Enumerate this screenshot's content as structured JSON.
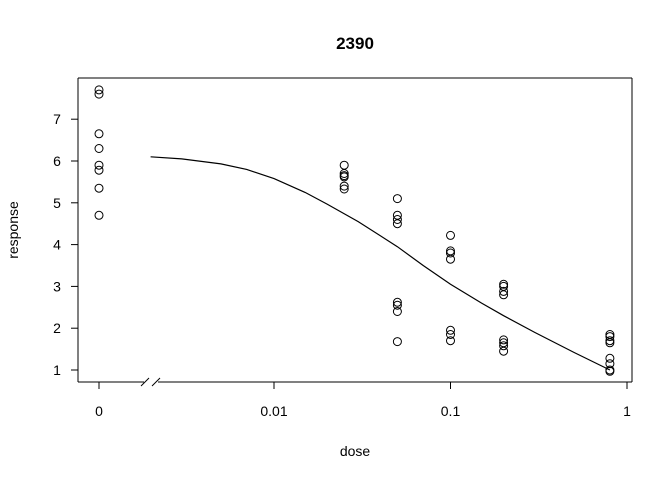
{
  "chart_data": {
    "type": "scatter",
    "title": "2390",
    "xlabel": "dose",
    "ylabel": "response",
    "x_scale": "log10 with a break next to the zero dose",
    "x_ticks": [
      {
        "value": 0,
        "label": "0"
      },
      {
        "value": 0.01,
        "label": "0.01"
      },
      {
        "value": 0.1,
        "label": "0.1"
      },
      {
        "value": 1,
        "label": "1"
      }
    ],
    "y_ticks": [
      1,
      2,
      3,
      4,
      5,
      6,
      7
    ],
    "ylim": [
      0.7,
      7.95
    ],
    "grid": false,
    "legend": "none",
    "series": [
      {
        "type": "scatter",
        "marker": "open-circle",
        "points": [
          {
            "x": 0,
            "y": 7.7
          },
          {
            "x": 0,
            "y": 7.6
          },
          {
            "x": 0,
            "y": 6.65
          },
          {
            "x": 0,
            "y": 6.3
          },
          {
            "x": 0,
            "y": 5.9
          },
          {
            "x": 0,
            "y": 5.78
          },
          {
            "x": 0,
            "y": 5.35
          },
          {
            "x": 0,
            "y": 4.7
          },
          {
            "x": 0.025,
            "y": 5.9
          },
          {
            "x": 0.025,
            "y": 5.7
          },
          {
            "x": 0.025,
            "y": 5.65
          },
          {
            "x": 0.025,
            "y": 5.62
          },
          {
            "x": 0.025,
            "y": 5.4
          },
          {
            "x": 0.025,
            "y": 5.33
          },
          {
            "x": 0.05,
            "y": 5.1
          },
          {
            "x": 0.05,
            "y": 4.7
          },
          {
            "x": 0.05,
            "y": 4.6
          },
          {
            "x": 0.05,
            "y": 4.5
          },
          {
            "x": 0.05,
            "y": 2.62
          },
          {
            "x": 0.05,
            "y": 2.55
          },
          {
            "x": 0.05,
            "y": 2.4
          },
          {
            "x": 0.05,
            "y": 1.68
          },
          {
            "x": 0.1,
            "y": 4.22
          },
          {
            "x": 0.1,
            "y": 3.85
          },
          {
            "x": 0.1,
            "y": 3.8
          },
          {
            "x": 0.1,
            "y": 3.65
          },
          {
            "x": 0.1,
            "y": 1.95
          },
          {
            "x": 0.1,
            "y": 1.85
          },
          {
            "x": 0.1,
            "y": 1.7
          },
          {
            "x": 0.2,
            "y": 3.05
          },
          {
            "x": 0.2,
            "y": 3.0
          },
          {
            "x": 0.2,
            "y": 2.88
          },
          {
            "x": 0.2,
            "y": 2.8
          },
          {
            "x": 0.2,
            "y": 1.72
          },
          {
            "x": 0.2,
            "y": 1.65
          },
          {
            "x": 0.2,
            "y": 1.58
          },
          {
            "x": 0.2,
            "y": 1.45
          },
          {
            "x": 0.8,
            "y": 1.85
          },
          {
            "x": 0.8,
            "y": 1.8
          },
          {
            "x": 0.8,
            "y": 1.7
          },
          {
            "x": 0.8,
            "y": 1.65
          },
          {
            "x": 0.8,
            "y": 1.28
          },
          {
            "x": 0.8,
            "y": 1.15
          },
          {
            "x": 0.8,
            "y": 1.0
          },
          {
            "x": 0.8,
            "y": 0.97
          }
        ]
      },
      {
        "type": "line",
        "x": [
          0.002,
          0.003,
          0.005,
          0.007,
          0.01,
          0.015,
          0.02,
          0.03,
          0.05,
          0.07,
          0.1,
          0.15,
          0.2,
          0.3,
          0.5,
          0.8
        ],
        "y": [
          6.1,
          6.05,
          5.93,
          5.8,
          5.58,
          5.25,
          4.97,
          4.55,
          3.95,
          3.5,
          3.05,
          2.6,
          2.3,
          1.9,
          1.42,
          1.0
        ]
      }
    ]
  }
}
